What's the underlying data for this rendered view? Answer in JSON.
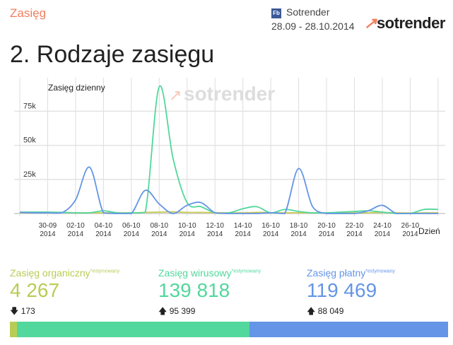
{
  "header": {
    "section": "Zasięg",
    "source_badge": "Fb",
    "source": "Sotrender",
    "date_range": "28.09 - 28.10.2014",
    "brand": "sotrender"
  },
  "page_title": "2. Rodzaje zasięgu",
  "colors": {
    "organic": "#b8cc55",
    "viral": "#52d79c",
    "paid": "#6495e6",
    "accent": "#f07f5e"
  },
  "chart_data": {
    "type": "line",
    "title": "Zasięg dzienny",
    "xlabel": "Dzień",
    "watermark": "sotrender",
    "ylim": [
      0,
      97000
    ],
    "yticks": [
      {
        "v": 25000,
        "label": "25k"
      },
      {
        "v": 50000,
        "label": "50k"
      },
      {
        "v": 75000,
        "label": "75k"
      }
    ],
    "x": [
      "28-09",
      "29-09",
      "30-09",
      "01-10",
      "02-10",
      "03-10",
      "04-10",
      "05-10",
      "06-10",
      "07-10",
      "08-10",
      "09-10",
      "10-10",
      "11-10",
      "12-10",
      "13-10",
      "14-10",
      "15-10",
      "16-10",
      "17-10",
      "18-10",
      "19-10",
      "20-10",
      "21-10",
      "22-10",
      "23-10",
      "24-10",
      "25-10",
      "26-10",
      "27-10",
      "28-10"
    ],
    "xticks": [
      {
        "i": 2,
        "l1": "30-09",
        "l2": "2014"
      },
      {
        "i": 4,
        "l1": "02-10",
        "l2": "2014"
      },
      {
        "i": 6,
        "l1": "04-10",
        "l2": "2014"
      },
      {
        "i": 8,
        "l1": "06-10",
        "l2": "2014"
      },
      {
        "i": 10,
        "l1": "08-10",
        "l2": "2014"
      },
      {
        "i": 12,
        "l1": "10-10",
        "l2": "2014"
      },
      {
        "i": 14,
        "l1": "12-10",
        "l2": "2014"
      },
      {
        "i": 16,
        "l1": "14-10",
        "l2": "2014"
      },
      {
        "i": 18,
        "l1": "16-10",
        "l2": "2014"
      },
      {
        "i": 20,
        "l1": "18-10",
        "l2": "2014"
      },
      {
        "i": 22,
        "l1": "20-10",
        "l2": "2014"
      },
      {
        "i": 24,
        "l1": "22-10",
        "l2": "2014"
      },
      {
        "i": 26,
        "l1": "24-10",
        "l2": "2014"
      },
      {
        "i": 28,
        "l1": "26-10",
        "l2": "2014"
      }
    ],
    "grid": true,
    "series": [
      {
        "key": "organic",
        "color": "#c8cc55",
        "values": [
          500,
          500,
          800,
          800,
          600,
          500,
          500,
          500,
          500,
          800,
          1000,
          1200,
          800,
          800,
          600,
          500,
          500,
          800,
          600,
          500,
          500,
          500,
          400,
          400,
          500,
          500,
          800,
          500,
          400,
          500,
          600
        ]
      },
      {
        "key": "viral",
        "color": "#52d79c",
        "values": [
          1000,
          1000,
          1000,
          800,
          500,
          500,
          2000,
          500,
          500,
          1000,
          93000,
          40000,
          8000,
          5000,
          500,
          500,
          3500,
          5000,
          500,
          3000,
          1500,
          500,
          500,
          1000,
          1500,
          2000,
          1000,
          0,
          0,
          3000,
          3000
        ]
      },
      {
        "key": "paid",
        "color": "#6495e6",
        "values": [
          800,
          500,
          500,
          500,
          10000,
          34000,
          500,
          0,
          0,
          17000,
          7000,
          0,
          6000,
          8000,
          500,
          0,
          0,
          0,
          500,
          0,
          33000,
          5000,
          0,
          0,
          0,
          2000,
          6000,
          0,
          0,
          0,
          0
        ]
      }
    ]
  },
  "stats": [
    {
      "key": "organic",
      "label": "Zasięg organiczny",
      "note": "*estymowany",
      "value": "4 267",
      "value_num": 4267,
      "delta_dir": "down",
      "delta": "173",
      "color": "#b8cc55"
    },
    {
      "key": "viral",
      "label": "Zasięg wirusowy",
      "note": "*estymowany",
      "value": "139 818",
      "value_num": 139818,
      "delta_dir": "up",
      "delta": "95 399",
      "color": "#52d79c"
    },
    {
      "key": "paid",
      "label": "Zasięg płatny",
      "note": "*estymowany",
      "value": "119 469",
      "value_num": 119469,
      "delta_dir": "up",
      "delta": "88 049",
      "color": "#6495e6"
    }
  ]
}
